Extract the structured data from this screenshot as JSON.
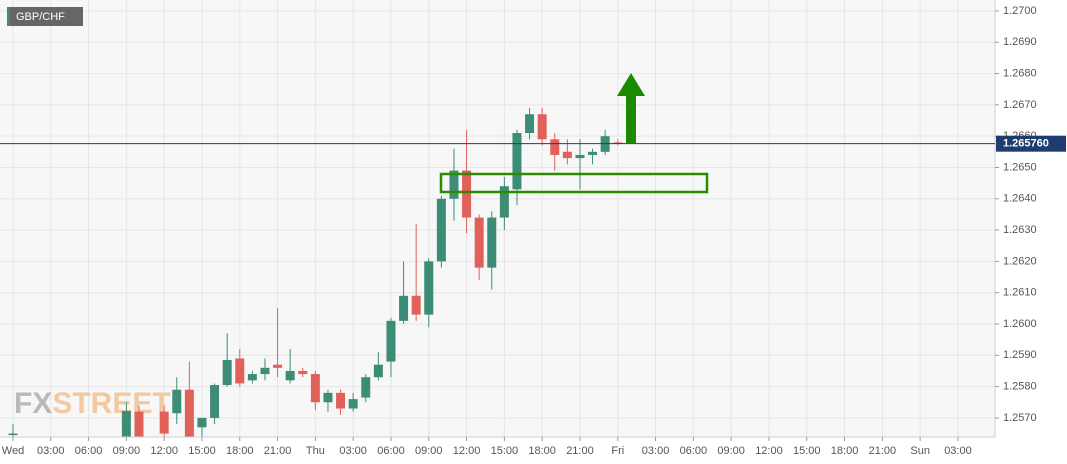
{
  "chart_data": {
    "type": "candlestick",
    "symbol": "GBP/CHF",
    "watermark": {
      "first": "FX",
      "second": "STREET"
    },
    "x": [
      0,
      9,
      10,
      12,
      13,
      14,
      15,
      16,
      17,
      18,
      19,
      20,
      21,
      22,
      23,
      24,
      25,
      26,
      27,
      28,
      29,
      30,
      31,
      32,
      33,
      34,
      35,
      36,
      37,
      38,
      39,
      40,
      41,
      42,
      43,
      44,
      45,
      46,
      47,
      48
    ],
    "open": [
      1.2565,
      1.2563,
      1.2572,
      1.2572,
      1.25715,
      1.2579,
      1.2567,
      1.257,
      1.25805,
      1.2589,
      1.2582,
      1.2584,
      1.2587,
      1.2582,
      1.2585,
      1.2584,
      1.2575,
      1.2578,
      1.2573,
      1.25765,
      1.2583,
      1.2588,
      1.2601,
      1.2609,
      1.2603,
      1.262,
      1.264,
      1.2649,
      1.2634,
      1.2618,
      1.2634,
      1.2643,
      1.2661,
      1.2667,
      1.2659,
      1.2655,
      1.2653,
      1.2654,
      1.2655,
      1.2658
    ],
    "high": [
      1.2568,
      1.2575,
      1.2574,
      1.2574,
      1.2583,
      1.2588,
      1.257,
      1.2581,
      1.2597,
      1.2592,
      1.2585,
      1.2589,
      1.2605,
      1.2592,
      1.2586,
      1.2585,
      1.2579,
      1.2579,
      1.2578,
      1.2584,
      1.2591,
      1.2602,
      1.262,
      1.2632,
      1.2621,
      1.2641,
      1.2656,
      1.2662,
      1.2635,
      1.2636,
      1.2647,
      1.2662,
      1.2669,
      1.2669,
      1.2661,
      1.2659,
      1.2659,
      1.2656,
      1.2662,
      1.2659
    ],
    "low": [
      1.2562,
      1.2562,
      1.2562,
      1.2563,
      1.2568,
      1.2563,
      1.2563,
      1.2568,
      1.258,
      1.258,
      1.2581,
      1.2582,
      1.2583,
      1.2581,
      1.2583,
      1.25725,
      1.2572,
      1.2571,
      1.2572,
      1.2575,
      1.2582,
      1.2583,
      1.26,
      1.2601,
      1.2599,
      1.2618,
      1.2633,
      1.2629,
      1.2614,
      1.2611,
      1.263,
      1.2638,
      1.2659,
      1.2657,
      1.2649,
      1.2651,
      1.2643,
      1.2651,
      1.2654,
      1.2657
    ],
    "close": [
      1.2565,
      1.25722,
      1.2563,
      1.2565,
      1.2579,
      1.2564,
      1.257,
      1.25805,
      1.25885,
      1.2581,
      1.2584,
      1.2586,
      1.2586,
      1.2585,
      1.2584,
      1.2575,
      1.2578,
      1.2573,
      1.2576,
      1.2583,
      1.2587,
      1.2601,
      1.2609,
      1.2603,
      1.262,
      1.264,
      1.2649,
      1.2634,
      1.2618,
      1.2634,
      1.2644,
      1.2661,
      1.2667,
      1.2659,
      1.2654,
      1.2653,
      1.2654,
      1.2655,
      1.266,
      1.26576
    ],
    "up_color": "#3d8c76",
    "down_color": "#e0605a",
    "last_price": {
      "value": 1.26576,
      "label": "1.265760"
    },
    "xlim": [
      -1.03,
      77.94
    ],
    "ylim": [
      1.25639,
      1.27035
    ],
    "grid": true,
    "xticks": [
      {
        "value": 0,
        "label": "Wed"
      },
      {
        "value": 3,
        "label": "03:00"
      },
      {
        "value": 6,
        "label": "06:00"
      },
      {
        "value": 9,
        "label": "09:00"
      },
      {
        "value": 12,
        "label": "12:00"
      },
      {
        "value": 15,
        "label": "15:00"
      },
      {
        "value": 18,
        "label": "18:00"
      },
      {
        "value": 21,
        "label": "21:00"
      },
      {
        "value": 24,
        "label": "Thu"
      },
      {
        "value": 27,
        "label": "03:00"
      },
      {
        "value": 30,
        "label": "06:00"
      },
      {
        "value": 33,
        "label": "09:00"
      },
      {
        "value": 36,
        "label": "12:00"
      },
      {
        "value": 39,
        "label": "15:00"
      },
      {
        "value": 42,
        "label": "18:00"
      },
      {
        "value": 45,
        "label": "21:00"
      },
      {
        "value": 48,
        "label": "Fri"
      },
      {
        "value": 51,
        "label": "03:00"
      },
      {
        "value": 54,
        "label": "06:00"
      },
      {
        "value": 57,
        "label": "09:00"
      },
      {
        "value": 60,
        "label": "12:00"
      },
      {
        "value": 63,
        "label": "15:00"
      },
      {
        "value": 66,
        "label": "18:00"
      },
      {
        "value": 69,
        "label": "21:00"
      },
      {
        "value": 72,
        "label": "Sun"
      },
      {
        "value": 75,
        "label": "03:00"
      }
    ],
    "yticks": [
      {
        "value": 1.257,
        "label": "1.2570"
      },
      {
        "value": 1.258,
        "label": "1.2580"
      },
      {
        "value": 1.259,
        "label": "1.2590"
      },
      {
        "value": 1.26,
        "label": "1.2600"
      },
      {
        "value": 1.261,
        "label": "1.2610"
      },
      {
        "value": 1.262,
        "label": "1.2620"
      },
      {
        "value": 1.263,
        "label": "1.2630"
      },
      {
        "value": 1.264,
        "label": "1.2640"
      },
      {
        "value": 1.265,
        "label": "1.2650"
      },
      {
        "value": 1.266,
        "label": "1.2660"
      },
      {
        "value": 1.267,
        "label": "1.2670"
      },
      {
        "value": 1.268,
        "label": "1.2680"
      },
      {
        "value": 1.269,
        "label": "1.2690"
      },
      {
        "value": 1.27,
        "label": "1.2700"
      }
    ]
  }
}
